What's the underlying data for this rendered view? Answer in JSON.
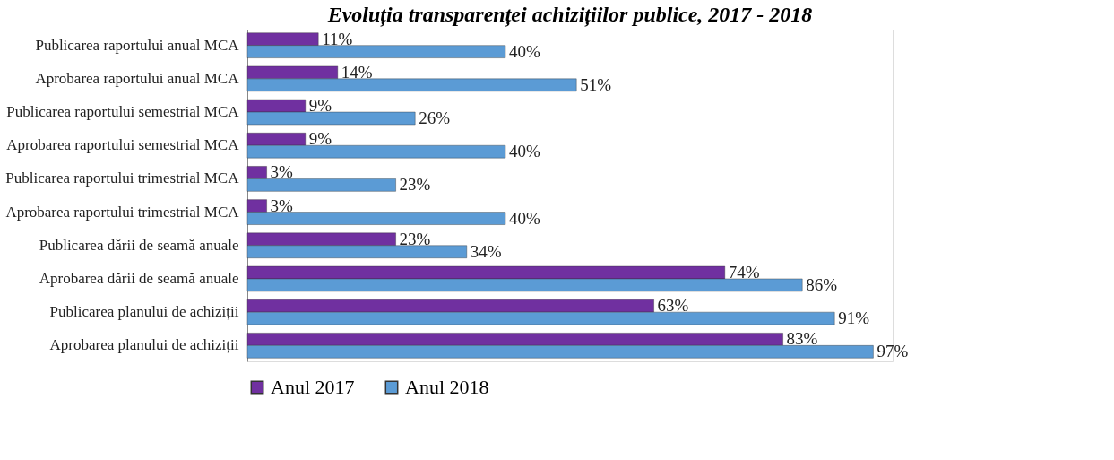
{
  "chart_data": {
    "type": "bar",
    "orientation": "horizontal",
    "title": "Evoluția transparenței  achizițiilor publice, 2017 - 2018",
    "categories": [
      "Publicarea raportului anual MCA",
      "Aprobarea raportului anual MCA",
      "Publicarea raportului semestrial MCA",
      "Aprobarea raportului semestrial MCA",
      "Publicarea raportului trimestrial MCA",
      "Aprobarea raportului trimestrial MCA",
      "Publicarea dării de seamă anuale",
      "Aprobarea dării de seamă anuale",
      "Publicarea planului de achiziții",
      "Aprobarea planului de achiziții"
    ],
    "series": [
      {
        "name": "Anul 2017",
        "color": "#7030a0",
        "values": [
          11,
          14,
          9,
          9,
          3,
          3,
          23,
          74,
          63,
          83
        ],
        "value_labels": [
          "11%",
          "14%",
          "9%",
          "9%",
          "3%",
          "3%",
          "23%",
          "74%",
          "63%",
          "83%"
        ]
      },
      {
        "name": "Anul 2018",
        "color": "#5b9bd5",
        "values": [
          40,
          51,
          26,
          40,
          23,
          40,
          34,
          86,
          91,
          97
        ],
        "value_labels": [
          "40%",
          "51%",
          "26%",
          "40%",
          "23%",
          "40%",
          "34%",
          "86%",
          "91%",
          "97%"
        ]
      }
    ],
    "xlim": [
      0,
      100
    ],
    "tick_labels": "y",
    "legend": "bottom"
  }
}
